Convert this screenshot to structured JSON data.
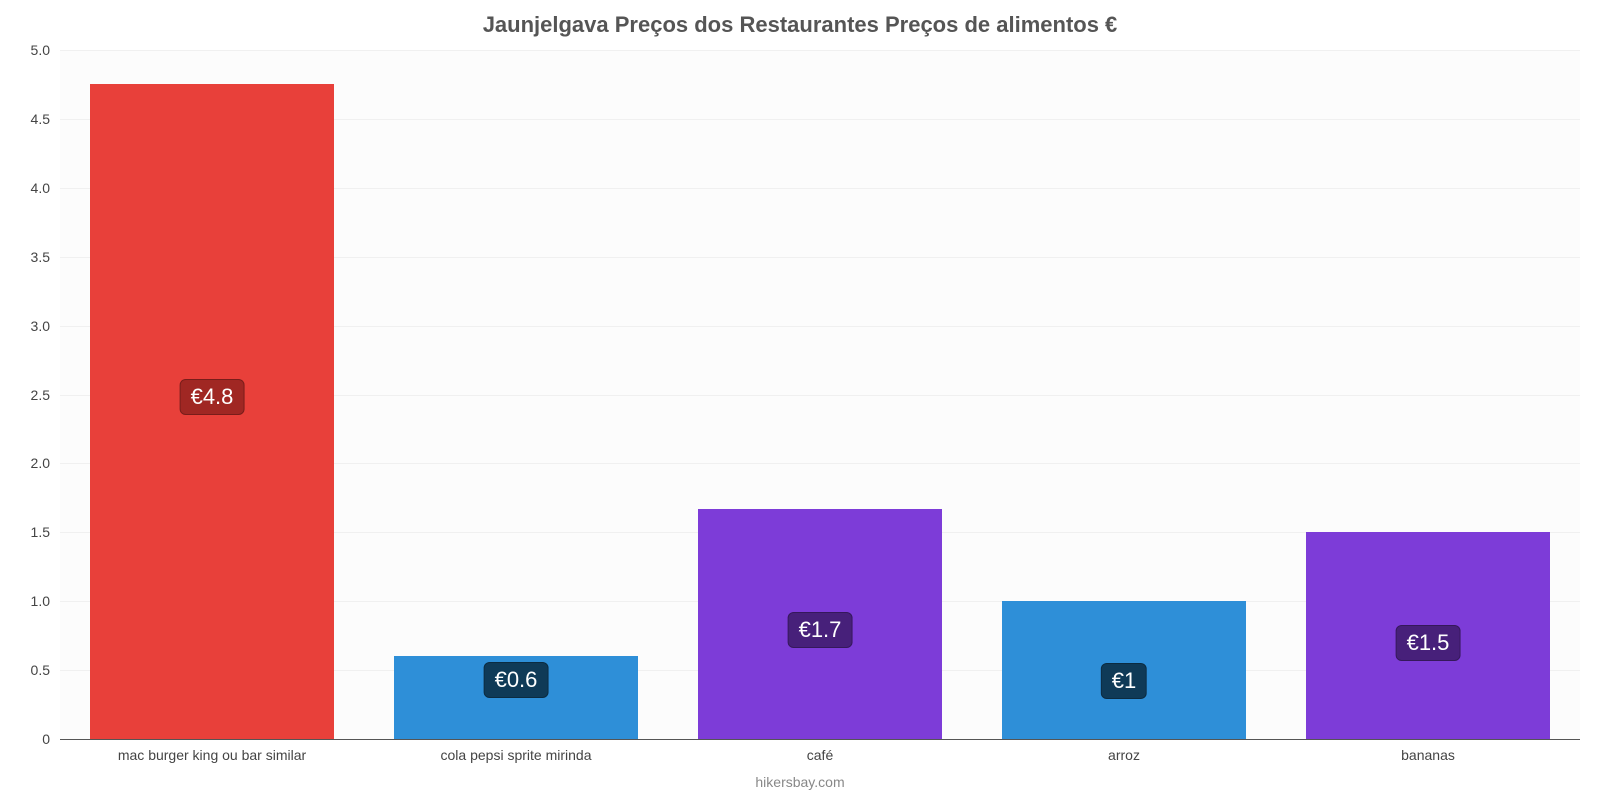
{
  "chart": {
    "type": "bar",
    "title": "Jaunjelgava Preços dos Restaurantes Preços de alimentos €",
    "title_fontsize": 22,
    "title_color": "#555555",
    "footer": "hikersbay.com",
    "footer_color": "#888888",
    "footer_fontsize": 14,
    "background_color": "#ffffff",
    "plot_background_color": "#fcfcfc",
    "grid_color": "#f0f0f0",
    "axis_color": "#555555",
    "ylim": [
      0,
      5.0
    ],
    "yticks": [
      0,
      0.5,
      1.0,
      1.5,
      2.0,
      2.5,
      3.0,
      3.5,
      4.0,
      4.5,
      5.0
    ],
    "ytick_labels": [
      "0",
      "0.5",
      "1.0",
      "1.5",
      "2.0",
      "2.5",
      "3.0",
      "3.5",
      "4.0",
      "4.5",
      "5.0"
    ],
    "tick_fontsize": 14,
    "tick_color": "#444444",
    "categories": [
      "mac burger king ou bar similar",
      "cola pepsi sprite mirinda",
      "café",
      "arroz",
      "bananas"
    ],
    "values": [
      4.75,
      0.6,
      1.67,
      1.0,
      1.5
    ],
    "value_labels": [
      "€4.8",
      "€0.6",
      "€1.7",
      "€1",
      "€1.5"
    ],
    "bar_colors": [
      "#e8403a",
      "#2e8fd8",
      "#7d3cd8",
      "#2e8fd8",
      "#7d3cd8"
    ],
    "badge_colors": [
      "#a02723",
      "#0f3a57",
      "#47207a",
      "#0f3a57",
      "#47207a"
    ],
    "label_text_color": "#ffffff",
    "label_fontsize": 22,
    "bar_width_ratio": 0.8
  }
}
